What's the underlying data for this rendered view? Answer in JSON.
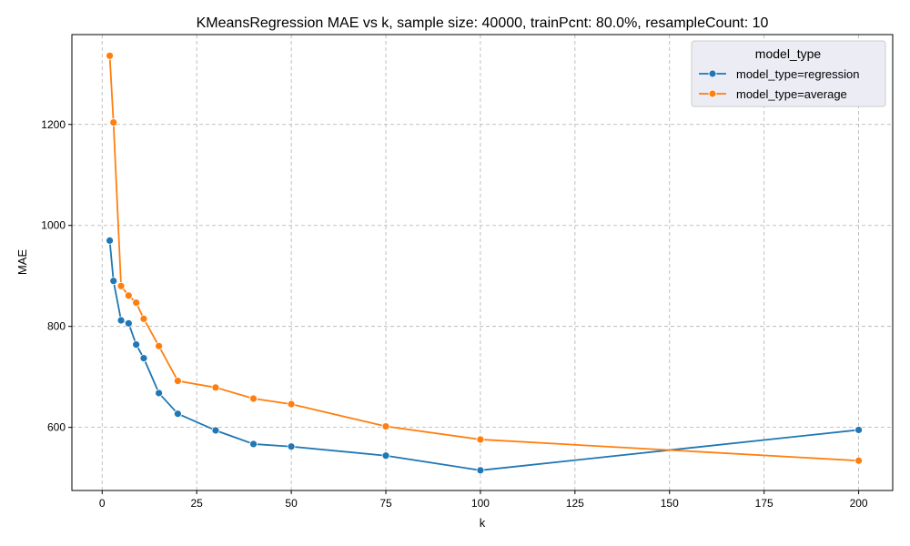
{
  "chart_data": {
    "type": "line",
    "title": "KMeansRegression MAE vs k, sample size: 40000, trainPcnt: 80.0%, resampleCount: 10",
    "xlabel": "k",
    "ylabel": "MAE",
    "xlim": [
      -8,
      209
    ],
    "ylim": [
      475,
      1378
    ],
    "xticks": [
      0,
      25,
      50,
      75,
      100,
      125,
      150,
      175,
      200
    ],
    "yticks": [
      600,
      800,
      1000,
      1200
    ],
    "grid": true,
    "legend": {
      "title": "model_type",
      "placement": "top-right"
    },
    "series": [
      {
        "name": "model_type=regression",
        "color": "#1f77b4",
        "points": [
          {
            "x": 2,
            "y": 970
          },
          {
            "x": 3,
            "y": 890
          },
          {
            "x": 5,
            "y": 812
          },
          {
            "x": 7,
            "y": 806
          },
          {
            "x": 9,
            "y": 764
          },
          {
            "x": 11,
            "y": 737
          },
          {
            "x": 15,
            "y": 668
          },
          {
            "x": 20,
            "y": 627
          },
          {
            "x": 30,
            "y": 594
          },
          {
            "x": 40,
            "y": 567
          },
          {
            "x": 50,
            "y": 562
          },
          {
            "x": 75,
            "y": 544
          },
          {
            "x": 100,
            "y": 515
          },
          {
            "x": 200,
            "y": 595
          }
        ]
      },
      {
        "name": "model_type=average",
        "color": "#ff7f0e",
        "points": [
          {
            "x": 2,
            "y": 1336
          },
          {
            "x": 3,
            "y": 1204
          },
          {
            "x": 5,
            "y": 880
          },
          {
            "x": 7,
            "y": 861
          },
          {
            "x": 9,
            "y": 847
          },
          {
            "x": 11,
            "y": 815
          },
          {
            "x": 15,
            "y": 761
          },
          {
            "x": 20,
            "y": 692
          },
          {
            "x": 30,
            "y": 679
          },
          {
            "x": 40,
            "y": 657
          },
          {
            "x": 50,
            "y": 646
          },
          {
            "x": 75,
            "y": 602
          },
          {
            "x": 100,
            "y": 576
          },
          {
            "x": 200,
            "y": 534
          }
        ]
      }
    ]
  }
}
